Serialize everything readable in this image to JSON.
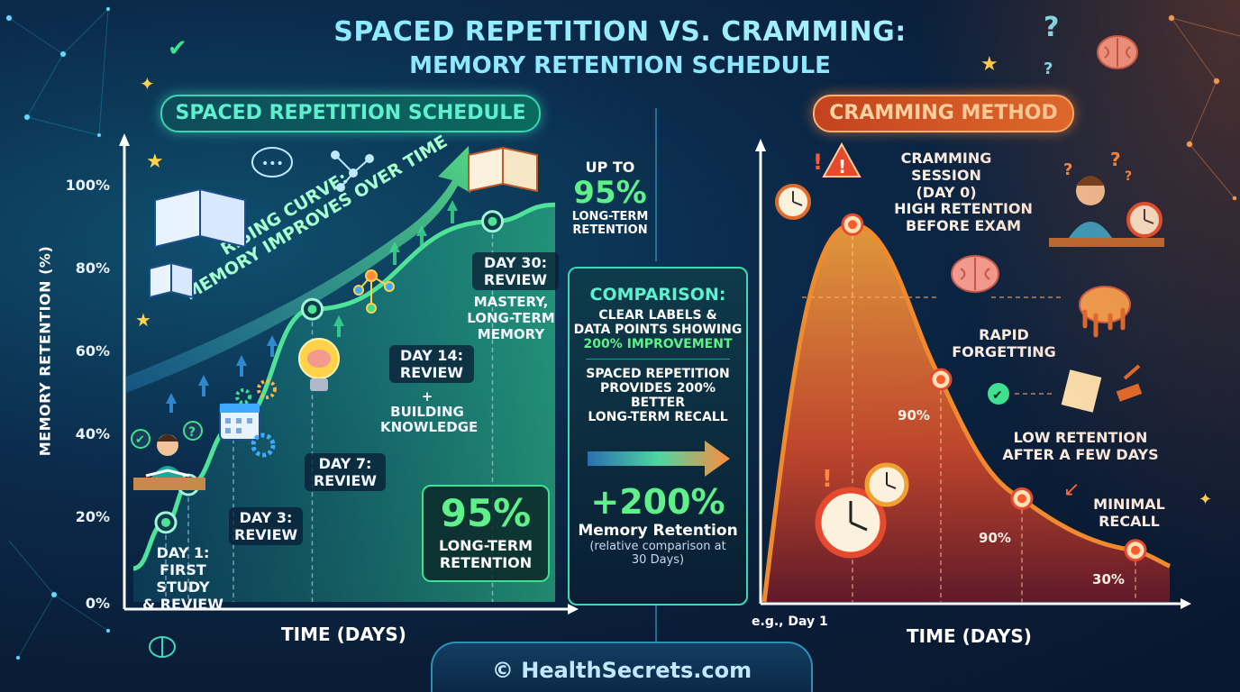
{
  "title": "SPACED REPETITION VS. CRAMMING:",
  "subtitle": "MEMORY RETENTION SCHEDULE",
  "footer": "© HealthSecrets.com",
  "colors": {
    "spaced": "#4fe39a",
    "cramming": "#f08a2e",
    "accent_cyan": "#7ce7ff",
    "accent_orange": "#ff8a3d"
  },
  "left_panel": {
    "badge": "SPACED REPETITION SCHEDULE",
    "ylabel": "MEMORY RETENTION (%)",
    "xlabel": "TIME (DAYS)",
    "arrow_text_1": "RISING CURVE:",
    "arrow_text_2": "MEMORY IMPROVES OVER TIME",
    "upto_1": "UP TO",
    "upto_value": "95%",
    "upto_2": "LONG-TERM",
    "upto_3": "RETENTION",
    "stat_value": "95%",
    "stat_1": "LONG-TERM",
    "stat_2": "RETENTION",
    "building_1": "+",
    "building_2": "BUILDING",
    "building_3": "KNOWLEDGE",
    "labels": [
      {
        "line1": "DAY 1:",
        "line2": "FIRST STUDY",
        "line3": "& REVIEW"
      },
      {
        "line1": "DAY 3:",
        "line2": "REVIEW"
      },
      {
        "line1": "DAY 7:",
        "line2": "REVIEW"
      },
      {
        "line1": "DAY 14:",
        "line2": "REVIEW"
      },
      {
        "line1": "DAY 30:",
        "line2": "REVIEW",
        "line3": "MASTERY,",
        "line4": "LONG-TERM",
        "line5": "MEMORY"
      }
    ]
  },
  "comparison": {
    "heading": "COMPARISON:",
    "line1": "CLEAR LABELS &",
    "line2": "DATA POINTS SHOWING",
    "line3": "200% IMPROVEMENT",
    "body1": "SPACED REPETITION",
    "body2": "PROVIDES 200%",
    "body3": "BETTER",
    "body4": "LONG-TERM RECALL",
    "big": "+200%",
    "big_label": "Memory Retention",
    "note1": "(relative comparison at",
    "note2": "30 Days)"
  },
  "right_panel": {
    "badge": "CRAMMING METHOD",
    "xlabel": "TIME (DAYS)",
    "x_start": "e.g., Day 1",
    "session_1": "CRAMMING SESSION",
    "session_2": "(DAY 0)",
    "high_1": "HIGH RETENTION",
    "high_2": "BEFORE EXAM",
    "rapid_1": "RAPID",
    "rapid_2": "FORGETTING",
    "low_1": "LOW RETENTION",
    "low_2": "AFTER A FEW DAYS",
    "minimal_1": "MINIMAL",
    "minimal_2": "RECALL",
    "val_a": "90%",
    "val_b": "90%",
    "val_c": "30%"
  },
  "chart_data": [
    {
      "type": "line",
      "title": "SPACED REPETITION SCHEDULE",
      "xlabel": "TIME (DAYS)",
      "ylabel": "MEMORY RETENTION (%)",
      "ylim": [
        0,
        100
      ],
      "yticks": [
        "0%",
        "20%",
        "40%",
        "60%",
        "80%",
        "100%"
      ],
      "series": [
        {
          "values": [
            {
              "x": "Day 1",
              "y": 19
            },
            {
              "x": "Day 3",
              "y": 28
            },
            {
              "x": "Day 7",
              "y": 42
            },
            {
              "x": "Day 14",
              "y": 70
            },
            {
              "x": "Day 30",
              "y": 91
            }
          ]
        }
      ],
      "annotation": "UP TO 95% LONG-TERM RETENTION",
      "grid": false
    },
    {
      "type": "line",
      "title": "CRAMMING METHOD",
      "xlabel": "TIME (DAYS)",
      "ylim": [
        0,
        100
      ],
      "series": [
        {
          "values": [
            {
              "x": "Day 0",
              "y": 95
            },
            {
              "x": "",
              "y": 56
            },
            {
              "x": "",
              "y": 26
            },
            {
              "x": "",
              "y": 13
            }
          ]
        }
      ],
      "grid": false
    }
  ]
}
